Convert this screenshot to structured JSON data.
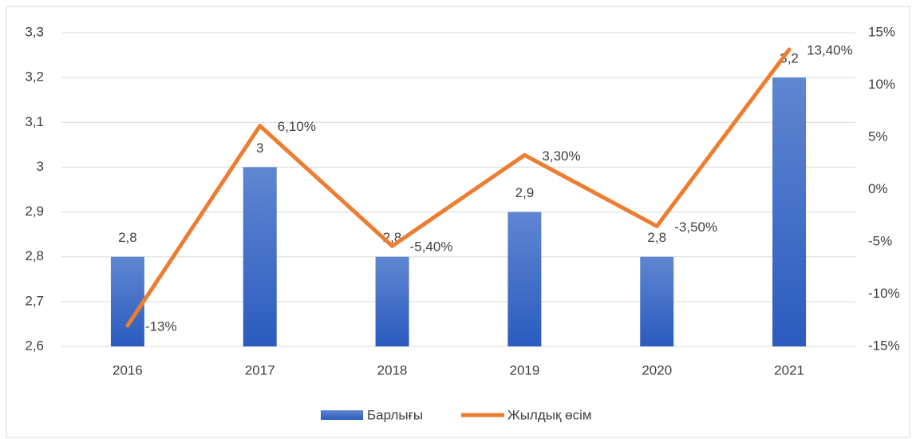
{
  "chart_data": {
    "type": "bar",
    "categories": [
      "2016",
      "2017",
      "2018",
      "2019",
      "2020",
      "2021"
    ],
    "series": [
      {
        "name": "Барлығы",
        "type": "bar",
        "color": "#4472c4",
        "values": [
          2.8,
          3,
          2.8,
          2.9,
          2.8,
          3.2
        ],
        "value_labels": [
          "2,8",
          "3",
          "2,8",
          "2,9",
          "2,8",
          "3,2"
        ]
      },
      {
        "name": "Жылдық өсім",
        "type": "line",
        "axis": "y2",
        "color": "#ed7d31",
        "values": [
          -13,
          6.1,
          -5.4,
          3.3,
          -3.5,
          13.4
        ],
        "value_labels": [
          "-13%",
          "6,10%",
          "-5,40%",
          "3,30%",
          "-3,50%",
          "13,40%"
        ]
      }
    ],
    "ylim": [
      2.6,
      3.3
    ],
    "yticks": [
      {
        "value": 2.6,
        "label": "2,6"
      },
      {
        "value": 2.7,
        "label": "2,7"
      },
      {
        "value": 2.8,
        "label": "2,8"
      },
      {
        "value": 2.9,
        "label": "2,9"
      },
      3,
      {
        "value": 3.1,
        "label": "3,1"
      },
      {
        "value": 3.2,
        "label": "3,2"
      },
      {
        "value": 3.3,
        "label": "3,3"
      }
    ],
    "y2lim": [
      -15,
      15
    ],
    "y2ticks": [
      {
        "value": -15,
        "label": "-15%"
      },
      {
        "value": -10,
        "label": "-10%"
      },
      {
        "value": -5,
        "label": "-5%"
      },
      {
        "value": 0,
        "label": "0%"
      },
      {
        "value": 5,
        "label": "5%"
      },
      {
        "value": 10,
        "label": "10%"
      },
      {
        "value": 15,
        "label": "15%"
      }
    ],
    "grid": true,
    "legend": "bottom"
  }
}
